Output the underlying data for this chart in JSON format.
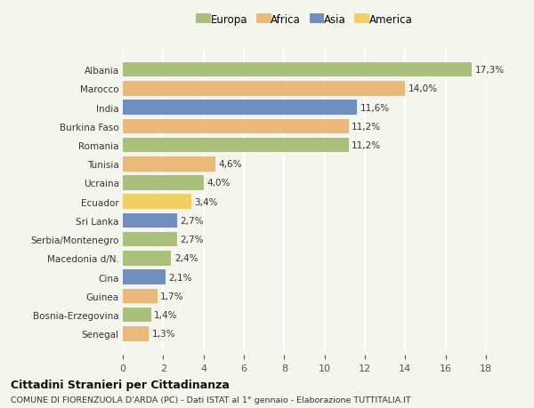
{
  "countries": [
    "Albania",
    "Marocco",
    "India",
    "Burkina Faso",
    "Romania",
    "Tunisia",
    "Ucraina",
    "Ecuador",
    "Sri Lanka",
    "Serbia/Montenegro",
    "Macedonia d/N.",
    "Cina",
    "Guinea",
    "Bosnia-Erzegovina",
    "Senegal"
  ],
  "values": [
    17.3,
    14.0,
    11.6,
    11.2,
    11.2,
    4.6,
    4.0,
    3.4,
    2.7,
    2.7,
    2.4,
    2.1,
    1.7,
    1.4,
    1.3
  ],
  "labels": [
    "17,3%",
    "14,0%",
    "11,6%",
    "11,2%",
    "11,2%",
    "4,6%",
    "4,0%",
    "3,4%",
    "2,7%",
    "2,7%",
    "2,4%",
    "2,1%",
    "1,7%",
    "1,4%",
    "1,3%"
  ],
  "continents": [
    "Europa",
    "Africa",
    "Asia",
    "Africa",
    "Europa",
    "Africa",
    "Europa",
    "America",
    "Asia",
    "Europa",
    "Europa",
    "Asia",
    "Africa",
    "Europa",
    "Africa"
  ],
  "colors": {
    "Europa": "#a8c07a",
    "Africa": "#e8b97a",
    "Asia": "#6e8fbf",
    "America": "#f0d060"
  },
  "title": "Cittadini Stranieri per Cittadinanza",
  "subtitle": "COMUNE DI FIORENZUOLA D'ARDA (PC) - Dati ISTAT al 1° gennaio - Elaborazione TUTTITALIA.IT",
  "xlim": [
    0,
    18
  ],
  "xticks": [
    0,
    2,
    4,
    6,
    8,
    10,
    12,
    14,
    16,
    18
  ],
  "background_color": "#f5f5f0",
  "bar_height": 0.78,
  "grid_color": "#ffffff"
}
